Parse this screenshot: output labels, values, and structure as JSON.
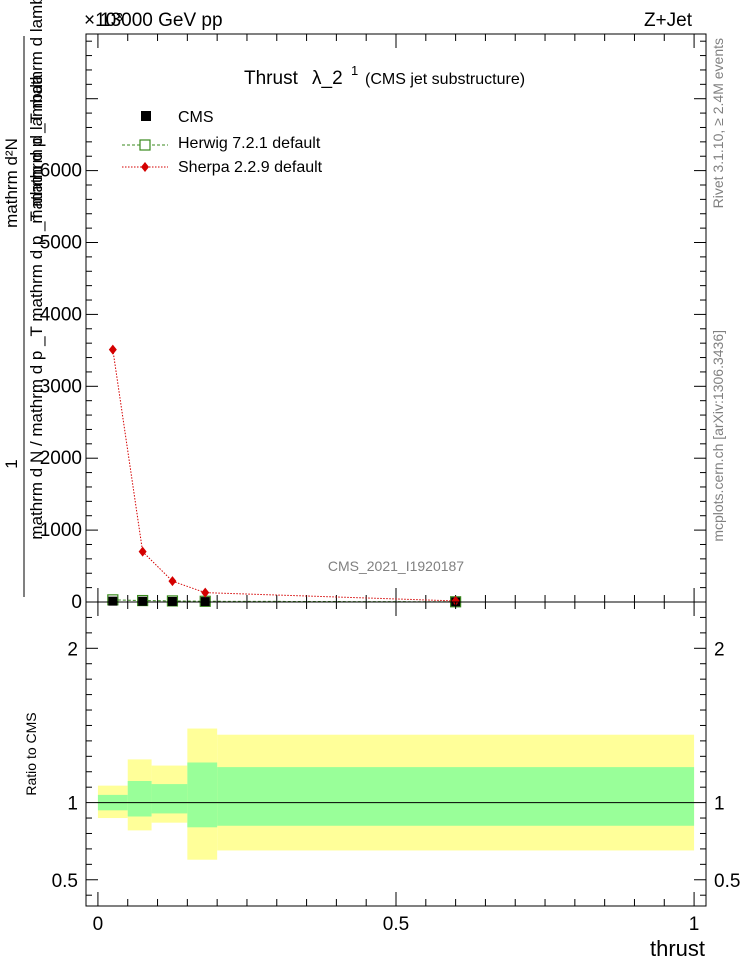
{
  "header": {
    "energy_label": "13000 GeV pp",
    "process_label": "Z+Jet",
    "exponent_label": "×10³"
  },
  "side_text": {
    "rivet": "Rivet 3.1.10, ≥ 2.4M events",
    "mcplots": "mcplots.cern.ch [arXiv:1306.3436]"
  },
  "watermark": "CMS_2021_I1920187",
  "colors": {
    "cms": "#000000",
    "herwig": "#3a8a1e",
    "sherpa": "#d40000",
    "band_inner": "#99ff99",
    "band_outer": "#ffff99"
  },
  "chart_data": [
    {
      "type": "line",
      "title": "Thrust λ_2¹ (CMS jet substructure)",
      "title_main": "Thrust",
      "title_lambda": "λ_2",
      "title_sup": "1",
      "title_sub": "(CMS jet substructure)",
      "ylabel_top": "1",
      "ylabel_bottom": "mathrm d N / mathrm d p  _T  mathrm d p  _T  mathrm d lambda",
      "ylabel_numerator": "mathrm d²N",
      "ylabel_fraction_bottom": "mathrm d p _T mathrm d lambda",
      "y_ticks": [
        {
          "value": 0,
          "label": "0"
        },
        {
          "value": 1000,
          "label": "1000"
        },
        {
          "value": 2000,
          "label": "2000"
        },
        {
          "value": 3000,
          "label": "3000"
        },
        {
          "value": 4000,
          "label": "4000"
        },
        {
          "value": 5000,
          "label": "5000"
        },
        {
          "value": 6000,
          "label": "6000"
        }
      ],
      "ylim": [
        0,
        7900
      ],
      "xlim": [
        -0.02,
        1.02
      ],
      "legend": {
        "position": "top-left",
        "cms": "CMS",
        "herwig": "Herwig 7.2.1 default",
        "sherpa": "Sherpa 2.2.9 default"
      },
      "series": [
        {
          "name": "CMS",
          "x": [
            0.025,
            0.075,
            0.125,
            0.18,
            0.6
          ],
          "y": [
            12,
            10,
            8,
            6,
            2
          ]
        },
        {
          "name": "Herwig 7.2.1 default",
          "x": [
            0.025,
            0.075,
            0.125,
            0.18,
            0.6
          ],
          "y": [
            30,
            20,
            15,
            10,
            3
          ]
        },
        {
          "name": "Sherpa 2.2.9 default",
          "x": [
            0.025,
            0.075,
            0.125,
            0.18,
            0.6
          ],
          "y": [
            3510,
            700,
            290,
            130,
            15
          ]
        }
      ]
    },
    {
      "type": "area",
      "ylabel": "Ratio to CMS",
      "xlabel": "thrust",
      "xlim": [
        -0.02,
        1.02
      ],
      "ylim": [
        0.33,
        2.3
      ],
      "x_ticks": [
        {
          "value": 0,
          "label": "0"
        },
        {
          "value": 0.5,
          "label": "0.5"
        },
        {
          "value": 1,
          "label": "1"
        }
      ],
      "y_ticks": [
        {
          "value": 0.5,
          "label": "0.5"
        },
        {
          "value": 1,
          "label": "1"
        },
        {
          "value": 2,
          "label": "2"
        }
      ],
      "bins": [
        {
          "x0": 0.0,
          "x1": 0.05,
          "inner": [
            0.95,
            1.05
          ],
          "outer": [
            0.9,
            1.11
          ]
        },
        {
          "x0": 0.05,
          "x1": 0.09,
          "inner": [
            0.91,
            1.14
          ],
          "outer": [
            0.82,
            1.28
          ]
        },
        {
          "x0": 0.09,
          "x1": 0.15,
          "inner": [
            0.93,
            1.12
          ],
          "outer": [
            0.87,
            1.24
          ]
        },
        {
          "x0": 0.15,
          "x1": 0.2,
          "inner": [
            0.84,
            1.26
          ],
          "outer": [
            0.63,
            1.48
          ]
        },
        {
          "x0": 0.2,
          "x1": 1.0,
          "inner": [
            0.85,
            1.23
          ],
          "outer": [
            0.69,
            1.44
          ]
        }
      ],
      "reference": 1
    }
  ]
}
